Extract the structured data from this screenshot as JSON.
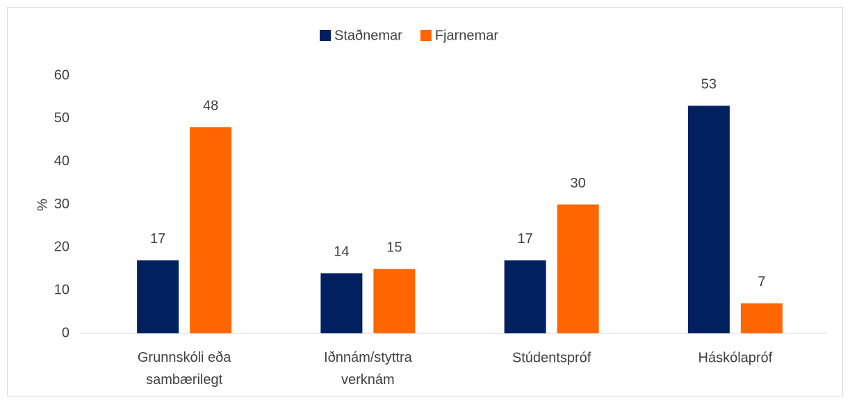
{
  "chart_data": {
    "type": "bar",
    "categories": [
      "Grunnskóli eða sambærilegt",
      "Iðnnám/styttra verknám",
      "Stúdentspróf",
      "Háskólapróf"
    ],
    "series": [
      {
        "name": "Staðnemar",
        "color": "#002060",
        "values": [
          17,
          14,
          17,
          53
        ]
      },
      {
        "name": "Fjarnemar",
        "color": "#ff6600",
        "values": [
          48,
          15,
          30,
          7
        ]
      }
    ],
    "ylabel": "%",
    "ylim": [
      0,
      60
    ],
    "yticks": [
      0,
      10,
      20,
      30,
      40,
      50,
      60
    ],
    "grid": false,
    "legend": "top"
  }
}
